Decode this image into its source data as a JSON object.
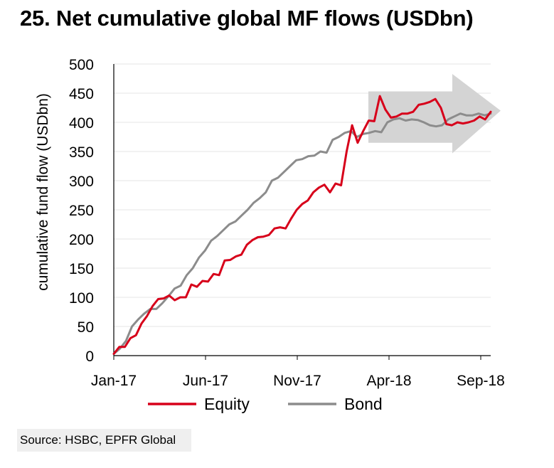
{
  "title": "25. Net cumulative global MF flows (USDbn)",
  "source": "Source: HSBC, EPFR Global",
  "chart_data": {
    "type": "line",
    "ylabel": "cumulative fund flow (USDbn)",
    "xlabel": "",
    "ylim": [
      0,
      500
    ],
    "yticks": [
      "0",
      "50",
      "100",
      "150",
      "200",
      "250",
      "300",
      "350",
      "400",
      "450",
      "500"
    ],
    "xtick_labels": [
      "Jan-17",
      "Jun-17",
      "Nov-17",
      "Apr-18",
      "Sep-18"
    ],
    "grid": true,
    "legend": "bottom",
    "series": [
      {
        "name": "Equity",
        "color": "#d7001a",
        "values": [
          3,
          15,
          15,
          30,
          35,
          55,
          68,
          85,
          97,
          98,
          103,
          95,
          100,
          100,
          122,
          118,
          128,
          127,
          140,
          138,
          163,
          164,
          170,
          173,
          190,
          198,
          203,
          204,
          207,
          218,
          220,
          218,
          235,
          250,
          260,
          266,
          280,
          288,
          293,
          280,
          295,
          292,
          350,
          395,
          365,
          385,
          403,
          402,
          445,
          422,
          408,
          410,
          415,
          415,
          418,
          430,
          432,
          435,
          440,
          425,
          397,
          395,
          400,
          398,
          400,
          403,
          410,
          405,
          418
        ]
      },
      {
        "name": "Bond",
        "color": "#8c8c8c",
        "values": [
          3,
          12,
          25,
          50,
          62,
          72,
          80,
          80,
          90,
          102,
          115,
          120,
          138,
          150,
          168,
          180,
          197,
          205,
          215,
          225,
          230,
          240,
          250,
          262,
          270,
          280,
          300,
          305,
          315,
          325,
          335,
          337,
          342,
          343,
          350,
          348,
          370,
          375,
          382,
          385,
          375,
          380,
          382,
          385,
          383,
          400,
          405,
          407,
          403,
          405,
          404,
          400,
          395,
          393,
          395,
          405,
          410,
          415,
          412,
          412,
          415,
          412,
          415
        ]
      }
    ],
    "annotation": "shaded arrow"
  }
}
